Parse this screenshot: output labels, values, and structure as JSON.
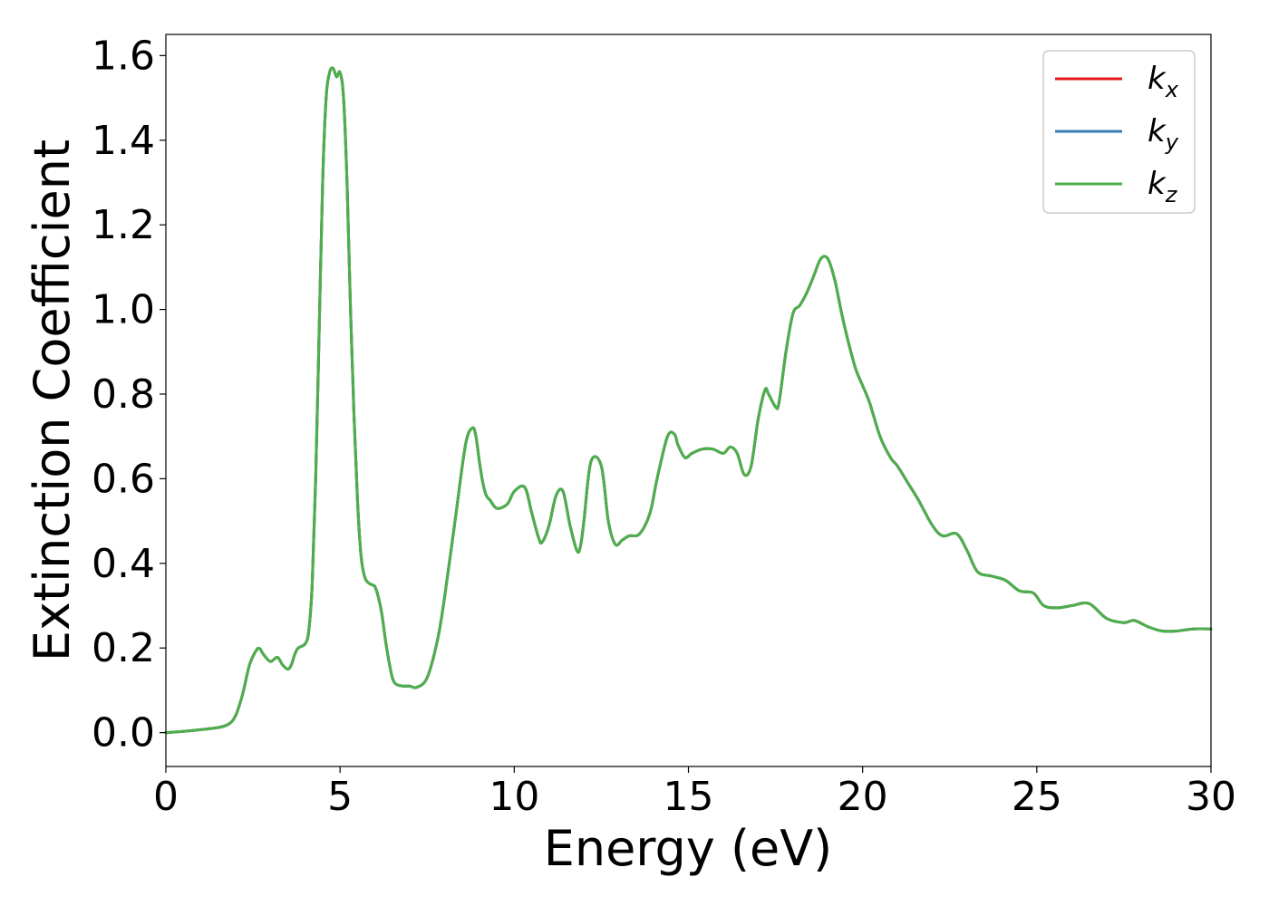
{
  "chart_data": {
    "type": "line",
    "title": "",
    "xlabel": "Energy (eV)",
    "ylabel": "Extinction Coefficient",
    "xlim": [
      0,
      30
    ],
    "ylim": [
      -0.08,
      1.65
    ],
    "xticks": [
      0,
      5,
      10,
      15,
      20,
      25,
      30
    ],
    "yticks": [
      0.0,
      0.2,
      0.4,
      0.6,
      0.8,
      1.0,
      1.2,
      1.4,
      1.6
    ],
    "xtick_labels": [
      "0",
      "5",
      "10",
      "15",
      "20",
      "25",
      "30"
    ],
    "ytick_labels": [
      "0.0",
      "0.2",
      "0.4",
      "0.6",
      "0.8",
      "1.0",
      "1.2",
      "1.4",
      "1.6"
    ],
    "grid": false,
    "legend_position": "top-right",
    "series": [
      {
        "name": "k_x",
        "label_base": "k",
        "label_sub": "x",
        "color": "#e41a1c",
        "x": [
          0,
          0.5,
          1.0,
          1.5,
          1.8,
          2.0,
          2.2,
          2.4,
          2.6,
          2.7,
          2.8,
          3.0,
          3.2,
          3.35,
          3.5,
          3.6,
          3.7,
          3.8,
          4.0,
          4.1,
          4.2,
          4.3,
          4.4,
          4.5,
          4.6,
          4.7,
          4.8,
          4.9,
          5.0,
          5.1,
          5.2,
          5.3,
          5.4,
          5.5,
          5.6,
          5.7,
          5.8,
          5.9,
          6.0,
          6.1,
          6.2,
          6.3,
          6.4,
          6.5,
          6.6,
          6.8,
          7.0,
          7.2,
          7.5,
          7.8,
          8.0,
          8.3,
          8.6,
          8.8,
          8.9,
          9.0,
          9.1,
          9.2,
          9.3,
          9.5,
          9.8,
          10.0,
          10.3,
          10.5,
          10.7,
          10.8,
          11.0,
          11.2,
          11.4,
          11.6,
          11.8,
          11.9,
          12.0,
          12.2,
          12.5,
          12.7,
          12.9,
          13.1,
          13.3,
          13.6,
          13.9,
          14.1,
          14.4,
          14.6,
          14.7,
          14.9,
          15.1,
          15.4,
          15.7,
          16.0,
          16.2,
          16.4,
          16.6,
          16.8,
          17.0,
          17.2,
          17.3,
          17.5,
          17.6,
          17.8,
          18.0,
          18.2,
          18.4,
          18.6,
          18.8,
          19.0,
          19.2,
          19.4,
          19.6,
          19.8,
          20.0,
          20.2,
          20.5,
          20.8,
          21.0,
          21.3,
          21.6,
          22.0,
          22.3,
          22.7,
          23.0,
          23.3,
          23.7,
          24.1,
          24.5,
          24.9,
          25.2,
          25.6,
          26.0,
          26.5,
          27.0,
          27.5,
          27.8,
          28.2,
          28.6,
          29.0,
          29.5,
          30.0
        ],
        "y": [
          0.0,
          0.003,
          0.007,
          0.012,
          0.02,
          0.04,
          0.09,
          0.16,
          0.195,
          0.198,
          0.185,
          0.168,
          0.178,
          0.16,
          0.15,
          0.16,
          0.185,
          0.2,
          0.21,
          0.24,
          0.35,
          0.6,
          0.95,
          1.3,
          1.5,
          1.56,
          1.57,
          1.55,
          1.56,
          1.5,
          1.3,
          1.0,
          0.75,
          0.55,
          0.42,
          0.37,
          0.355,
          0.35,
          0.345,
          0.32,
          0.28,
          0.22,
          0.17,
          0.13,
          0.115,
          0.11,
          0.11,
          0.107,
          0.13,
          0.22,
          0.32,
          0.5,
          0.68,
          0.72,
          0.7,
          0.64,
          0.59,
          0.56,
          0.55,
          0.53,
          0.54,
          0.57,
          0.58,
          0.52,
          0.46,
          0.45,
          0.49,
          0.56,
          0.57,
          0.49,
          0.43,
          0.44,
          0.5,
          0.64,
          0.63,
          0.5,
          0.445,
          0.455,
          0.465,
          0.47,
          0.52,
          0.6,
          0.7,
          0.705,
          0.68,
          0.65,
          0.66,
          0.67,
          0.67,
          0.66,
          0.675,
          0.66,
          0.61,
          0.63,
          0.74,
          0.81,
          0.8,
          0.77,
          0.78,
          0.9,
          0.99,
          1.01,
          1.04,
          1.08,
          1.12,
          1.12,
          1.07,
          0.99,
          0.92,
          0.86,
          0.82,
          0.78,
          0.7,
          0.65,
          0.63,
          0.59,
          0.55,
          0.49,
          0.465,
          0.47,
          0.43,
          0.38,
          0.37,
          0.36,
          0.335,
          0.33,
          0.3,
          0.295,
          0.3,
          0.305,
          0.27,
          0.26,
          0.265,
          0.25,
          0.24,
          0.24,
          0.245,
          0.245
        ]
      },
      {
        "name": "k_y",
        "label_base": "k",
        "label_sub": "y",
        "color": "#377eb8",
        "x": [
          0,
          0.5,
          1.0,
          1.5,
          1.8,
          2.0,
          2.2,
          2.4,
          2.6,
          2.7,
          2.8,
          3.0,
          3.2,
          3.35,
          3.5,
          3.6,
          3.7,
          3.8,
          4.0,
          4.1,
          4.2,
          4.3,
          4.4,
          4.5,
          4.6,
          4.7,
          4.8,
          4.9,
          5.0,
          5.1,
          5.2,
          5.3,
          5.4,
          5.5,
          5.6,
          5.7,
          5.8,
          5.9,
          6.0,
          6.1,
          6.2,
          6.3,
          6.4,
          6.5,
          6.6,
          6.8,
          7.0,
          7.2,
          7.5,
          7.8,
          8.0,
          8.3,
          8.6,
          8.8,
          8.9,
          9.0,
          9.1,
          9.2,
          9.3,
          9.5,
          9.8,
          10.0,
          10.3,
          10.5,
          10.7,
          10.8,
          11.0,
          11.2,
          11.4,
          11.6,
          11.8,
          11.9,
          12.0,
          12.2,
          12.5,
          12.7,
          12.9,
          13.1,
          13.3,
          13.6,
          13.9,
          14.1,
          14.4,
          14.6,
          14.7,
          14.9,
          15.1,
          15.4,
          15.7,
          16.0,
          16.2,
          16.4,
          16.6,
          16.8,
          17.0,
          17.2,
          17.3,
          17.5,
          17.6,
          17.8,
          18.0,
          18.2,
          18.4,
          18.6,
          18.8,
          19.0,
          19.2,
          19.4,
          19.6,
          19.8,
          20.0,
          20.2,
          20.5,
          20.8,
          21.0,
          21.3,
          21.6,
          22.0,
          22.3,
          22.7,
          23.0,
          23.3,
          23.7,
          24.1,
          24.5,
          24.9,
          25.2,
          25.6,
          26.0,
          26.5,
          27.0,
          27.5,
          27.8,
          28.2,
          28.6,
          29.0,
          29.5,
          30.0
        ],
        "y": [
          0.0,
          0.003,
          0.007,
          0.012,
          0.02,
          0.04,
          0.09,
          0.16,
          0.195,
          0.198,
          0.185,
          0.168,
          0.178,
          0.16,
          0.15,
          0.16,
          0.185,
          0.2,
          0.21,
          0.24,
          0.35,
          0.6,
          0.95,
          1.3,
          1.5,
          1.56,
          1.57,
          1.55,
          1.56,
          1.5,
          1.3,
          1.0,
          0.75,
          0.55,
          0.42,
          0.37,
          0.355,
          0.35,
          0.345,
          0.32,
          0.28,
          0.22,
          0.17,
          0.13,
          0.115,
          0.11,
          0.11,
          0.107,
          0.13,
          0.22,
          0.32,
          0.5,
          0.68,
          0.72,
          0.7,
          0.64,
          0.59,
          0.56,
          0.55,
          0.53,
          0.54,
          0.57,
          0.58,
          0.52,
          0.46,
          0.45,
          0.49,
          0.56,
          0.57,
          0.49,
          0.43,
          0.44,
          0.5,
          0.64,
          0.63,
          0.5,
          0.445,
          0.455,
          0.465,
          0.47,
          0.52,
          0.6,
          0.7,
          0.705,
          0.68,
          0.65,
          0.66,
          0.67,
          0.67,
          0.66,
          0.675,
          0.66,
          0.61,
          0.63,
          0.74,
          0.81,
          0.8,
          0.77,
          0.78,
          0.9,
          0.99,
          1.01,
          1.04,
          1.08,
          1.12,
          1.12,
          1.07,
          0.99,
          0.92,
          0.86,
          0.82,
          0.78,
          0.7,
          0.65,
          0.63,
          0.59,
          0.55,
          0.49,
          0.465,
          0.47,
          0.43,
          0.38,
          0.37,
          0.36,
          0.335,
          0.33,
          0.3,
          0.295,
          0.3,
          0.305,
          0.27,
          0.26,
          0.265,
          0.25,
          0.24,
          0.24,
          0.245,
          0.245
        ]
      },
      {
        "name": "k_z",
        "label_base": "k",
        "label_sub": "z",
        "color": "#4daf4a",
        "x": [
          0,
          0.5,
          1.0,
          1.5,
          1.8,
          2.0,
          2.2,
          2.4,
          2.6,
          2.7,
          2.8,
          3.0,
          3.2,
          3.35,
          3.5,
          3.6,
          3.7,
          3.8,
          4.0,
          4.1,
          4.2,
          4.3,
          4.4,
          4.5,
          4.6,
          4.7,
          4.8,
          4.9,
          5.0,
          5.1,
          5.2,
          5.3,
          5.4,
          5.5,
          5.6,
          5.7,
          5.8,
          5.9,
          6.0,
          6.1,
          6.2,
          6.3,
          6.4,
          6.5,
          6.6,
          6.8,
          7.0,
          7.2,
          7.5,
          7.8,
          8.0,
          8.3,
          8.6,
          8.8,
          8.9,
          9.0,
          9.1,
          9.2,
          9.3,
          9.5,
          9.8,
          10.0,
          10.3,
          10.5,
          10.7,
          10.8,
          11.0,
          11.2,
          11.4,
          11.6,
          11.8,
          11.9,
          12.0,
          12.2,
          12.5,
          12.7,
          12.9,
          13.1,
          13.3,
          13.6,
          13.9,
          14.1,
          14.4,
          14.6,
          14.7,
          14.9,
          15.1,
          15.4,
          15.7,
          16.0,
          16.2,
          16.4,
          16.6,
          16.8,
          17.0,
          17.2,
          17.3,
          17.5,
          17.6,
          17.8,
          18.0,
          18.2,
          18.4,
          18.6,
          18.8,
          19.0,
          19.2,
          19.4,
          19.6,
          19.8,
          20.0,
          20.2,
          20.5,
          20.8,
          21.0,
          21.3,
          21.6,
          22.0,
          22.3,
          22.7,
          23.0,
          23.3,
          23.7,
          24.1,
          24.5,
          24.9,
          25.2,
          25.6,
          26.0,
          26.5,
          27.0,
          27.5,
          27.8,
          28.2,
          28.6,
          29.0,
          29.5,
          30.0
        ],
        "y": [
          0.0,
          0.003,
          0.007,
          0.012,
          0.02,
          0.04,
          0.09,
          0.16,
          0.195,
          0.198,
          0.185,
          0.168,
          0.178,
          0.16,
          0.15,
          0.16,
          0.185,
          0.2,
          0.21,
          0.24,
          0.35,
          0.6,
          0.95,
          1.3,
          1.5,
          1.56,
          1.57,
          1.55,
          1.56,
          1.5,
          1.3,
          1.0,
          0.75,
          0.55,
          0.42,
          0.37,
          0.355,
          0.35,
          0.345,
          0.32,
          0.28,
          0.22,
          0.17,
          0.13,
          0.115,
          0.11,
          0.11,
          0.107,
          0.13,
          0.22,
          0.32,
          0.5,
          0.68,
          0.72,
          0.7,
          0.64,
          0.59,
          0.56,
          0.55,
          0.53,
          0.54,
          0.57,
          0.58,
          0.52,
          0.46,
          0.45,
          0.49,
          0.56,
          0.57,
          0.49,
          0.43,
          0.44,
          0.5,
          0.64,
          0.63,
          0.5,
          0.445,
          0.455,
          0.465,
          0.47,
          0.52,
          0.6,
          0.7,
          0.705,
          0.68,
          0.65,
          0.66,
          0.67,
          0.67,
          0.66,
          0.675,
          0.66,
          0.61,
          0.63,
          0.74,
          0.81,
          0.8,
          0.77,
          0.78,
          0.9,
          0.99,
          1.01,
          1.04,
          1.08,
          1.12,
          1.12,
          1.07,
          0.99,
          0.92,
          0.86,
          0.82,
          0.78,
          0.7,
          0.65,
          0.63,
          0.59,
          0.55,
          0.49,
          0.465,
          0.47,
          0.43,
          0.38,
          0.37,
          0.36,
          0.335,
          0.33,
          0.3,
          0.295,
          0.3,
          0.305,
          0.27,
          0.26,
          0.265,
          0.25,
          0.24,
          0.24,
          0.245,
          0.245
        ]
      }
    ]
  }
}
